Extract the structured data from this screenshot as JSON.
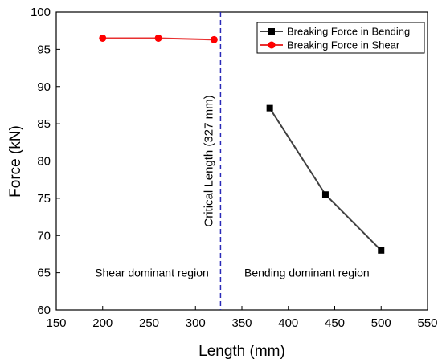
{
  "chart_data": {
    "type": "line",
    "xlabel": "Length (mm)",
    "ylabel": "Force (kN)",
    "xlim": [
      150,
      550
    ],
    "ylim": [
      60,
      100
    ],
    "x_ticks": [
      150,
      200,
      250,
      300,
      350,
      400,
      450,
      500,
      550
    ],
    "y_ticks": [
      60,
      65,
      70,
      75,
      80,
      85,
      90,
      95,
      100
    ],
    "series": [
      {
        "name": "Breaking Force in Bending",
        "color": "#404040",
        "marker": "square",
        "marker_color": "#000000",
        "x": [
          380,
          440,
          500
        ],
        "y": [
          87.1,
          75.5,
          68.0
        ]
      },
      {
        "name": "Breaking Force in Shear",
        "color": "#e83030",
        "marker": "circle",
        "marker_color": "#ff0000",
        "x": [
          200,
          260,
          320
        ],
        "y": [
          96.5,
          96.5,
          96.3
        ]
      }
    ],
    "reference_line": {
      "x": 327,
      "label": "Critical Length (327 mm)",
      "color": "#2a2ab8",
      "style": "dashed"
    },
    "annotations": [
      {
        "text": "Shear dominant region",
        "x": 253,
        "y": 65
      },
      {
        "text": "Bending dominant region",
        "x": 420,
        "y": 65
      }
    ],
    "legend_position": "top-right",
    "grid": false
  }
}
